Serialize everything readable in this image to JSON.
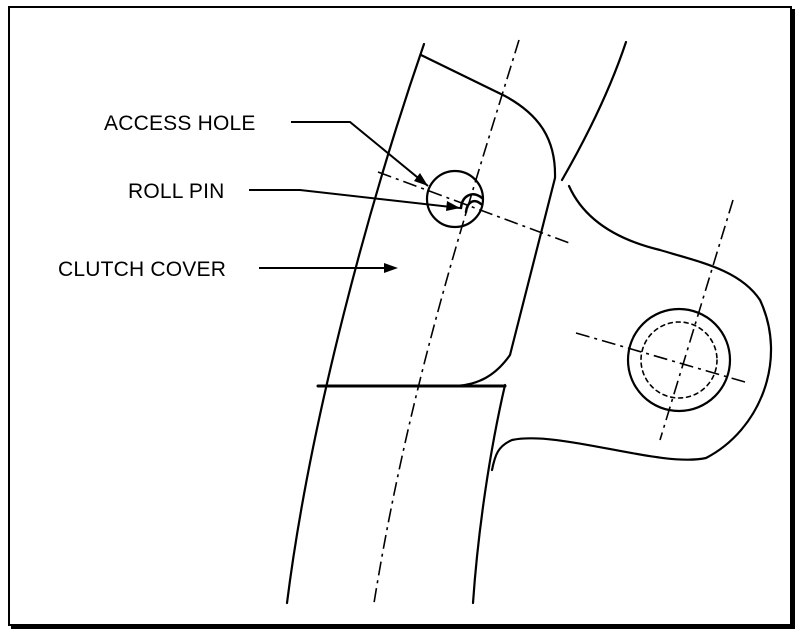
{
  "figure": {
    "labels": {
      "access_hole": "ACCESS HOLE",
      "roll_pin": "ROLL PIN",
      "clutch_cover": "CLUTCH COVER"
    }
  },
  "colors": {
    "line": "#000000",
    "background": "#ffffff"
  }
}
